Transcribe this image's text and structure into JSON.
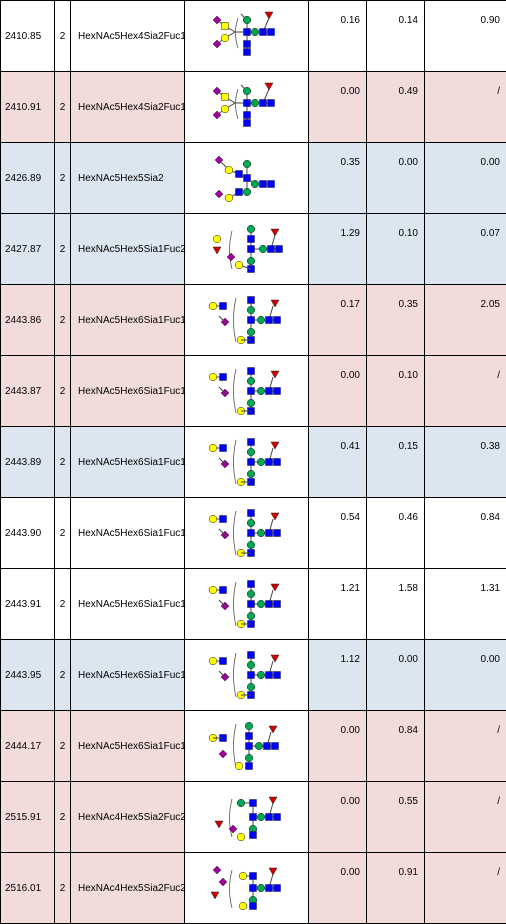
{
  "rows": [
    {
      "mass": "2410.85",
      "charge": "2",
      "composition": "HexNAc5Hex4Sia2Fuc1",
      "v1": "0.16",
      "v2": "0.14",
      "v3": "0.90",
      "shade": "white",
      "structure": "A"
    },
    {
      "mass": "2410.91",
      "charge": "2",
      "composition": "HexNAc5Hex4Sia2Fuc1",
      "v1": "0.00",
      "v2": "0.49",
      "v3": "/",
      "shade": "pink",
      "structure": "A"
    },
    {
      "mass": "2426.89",
      "charge": "2",
      "composition": "HexNAc5Hex5Sia2",
      "v1": "0.35",
      "v2": "0.00",
      "v3": "0.00",
      "shade": "blue",
      "structure": "B"
    },
    {
      "mass": "2427.87",
      "charge": "2",
      "composition": "HexNAc5Hex5Sia1Fuc2",
      "v1": "1.29",
      "v2": "0.10",
      "v3": "0.07",
      "shade": "blue",
      "structure": "C"
    },
    {
      "mass": "2443.86",
      "charge": "2",
      "composition": "HexNAc5Hex6Sia1Fuc1",
      "v1": "0.17",
      "v2": "0.35",
      "v3": "2.05",
      "shade": "pink",
      "structure": "D"
    },
    {
      "mass": "2443.87",
      "charge": "2",
      "composition": "HexNAc5Hex6Sia1Fuc1",
      "v1": "0.00",
      "v2": "0.10",
      "v3": "/",
      "shade": "pink",
      "structure": "D"
    },
    {
      "mass": "2443.89",
      "charge": "2",
      "composition": "HexNAc5Hex6Sia1Fuc1",
      "v1": "0.41",
      "v2": "0.15",
      "v3": "0.38",
      "shade": "blue",
      "structure": "D"
    },
    {
      "mass": "2443.90",
      "charge": "2",
      "composition": "HexNAc5Hex6Sia1Fuc1",
      "v1": "0.54",
      "v2": "0.46",
      "v3": "0.84",
      "shade": "white",
      "structure": "D"
    },
    {
      "mass": "2443.91",
      "charge": "2",
      "composition": "HexNAc5Hex6Sia1Fuc1",
      "v1": "1.21",
      "v2": "1.58",
      "v3": "1.31",
      "shade": "white",
      "structure": "D"
    },
    {
      "mass": "2443.95",
      "charge": "2",
      "composition": "HexNAc5Hex6Sia1Fuc1",
      "v1": "1.12",
      "v2": "0.00",
      "v3": "0.00",
      "shade": "blue",
      "structure": "D"
    },
    {
      "mass": "2444.17",
      "charge": "2",
      "composition": "HexNAc5Hex6Sia1Fuc1",
      "v1": "0.00",
      "v2": "0.84",
      "v3": "/",
      "shade": "pink",
      "structure": "E"
    },
    {
      "mass": "2515.91",
      "charge": "2",
      "composition": "HexNAc4Hex5Sia2Fuc2",
      "v1": "0.00",
      "v2": "0.55",
      "v3": "/",
      "shade": "pink",
      "structure": "F"
    },
    {
      "mass": "2516.01",
      "charge": "2",
      "composition": "HexNAc4Hex5Sia2Fuc2",
      "v1": "0.00",
      "v2": "0.91",
      "v3": "/",
      "shade": "pink",
      "structure": "G"
    }
  ],
  "colors": {
    "pink_row": "#f2dcdb",
    "blue_row": "#dce6f1",
    "hexnac_square": "#0000ff",
    "hex_circle": "#00a651",
    "gal_circle": "#ffff00",
    "galnac_square": "#ffff00",
    "sia_diamond": "#a000a0",
    "fuc_triangle": "#d00000"
  },
  "symbols": [
    "blue-square",
    "green-circle",
    "yellow-circle",
    "yellow-square",
    "purple-diamond",
    "red-triangle"
  ]
}
